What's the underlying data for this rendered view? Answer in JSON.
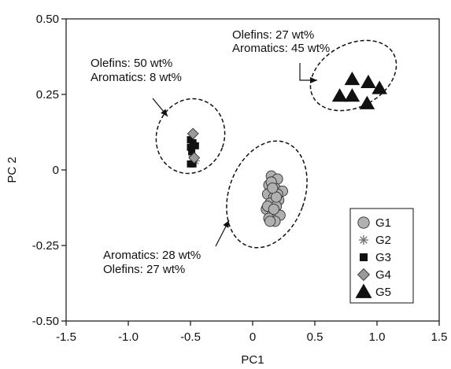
{
  "chart_data": {
    "type": "scatter",
    "xlabel": "PC1",
    "ylabel": "PC 2",
    "xlim": [
      -1.5,
      1.5
    ],
    "ylim": [
      -0.5,
      0.5
    ],
    "x_ticks": [
      -1.5,
      -1.0,
      -0.5,
      0,
      0.5,
      1.0,
      1.5
    ],
    "x_tick_labels": [
      "-1.5",
      "-1.0",
      "-0.5",
      "0",
      "0.5",
      "1.0",
      "1.5"
    ],
    "y_ticks": [
      0.5,
      0.25,
      0,
      -0.25,
      -0.5
    ],
    "y_tick_labels": [
      "0.50",
      "0.25",
      "0",
      "-0.25",
      "-0.50"
    ],
    "grid": false,
    "legend_position": "bottom-right",
    "series": [
      {
        "name": "G1",
        "marker": "circle",
        "color": "#b0b0b0",
        "points": [
          [
            0.15,
            -0.02
          ],
          [
            0.2,
            -0.03
          ],
          [
            0.13,
            -0.05
          ],
          [
            0.18,
            -0.06
          ],
          [
            0.24,
            -0.07
          ],
          [
            0.12,
            -0.08
          ],
          [
            0.17,
            -0.09
          ],
          [
            0.21,
            -0.1
          ],
          [
            0.14,
            -0.11
          ],
          [
            0.19,
            -0.12
          ],
          [
            0.11,
            -0.13
          ],
          [
            0.16,
            -0.14
          ],
          [
            0.22,
            -0.15
          ],
          [
            0.13,
            -0.16
          ],
          [
            0.18,
            -0.17
          ],
          [
            0.15,
            -0.04
          ],
          [
            0.2,
            -0.08
          ],
          [
            0.12,
            -0.12
          ],
          [
            0.17,
            -0.13
          ],
          [
            0.14,
            -0.17
          ],
          [
            0.19,
            -0.09
          ],
          [
            0.16,
            -0.06
          ]
        ]
      },
      {
        "name": "G2",
        "marker": "asterisk",
        "color": "#777777",
        "points": [
          [
            -0.48,
            0.045
          ],
          [
            -0.46,
            0.03
          ]
        ]
      },
      {
        "name": "G3",
        "marker": "square",
        "color": "#111111",
        "points": [
          [
            -0.5,
            0.1
          ],
          [
            -0.48,
            0.09
          ],
          [
            -0.5,
            0.075
          ],
          [
            -0.46,
            0.08
          ],
          [
            -0.5,
            0.02
          ],
          [
            -0.48,
            0.02
          ],
          [
            -0.49,
            0.06
          ]
        ]
      },
      {
        "name": "G4",
        "marker": "diamond",
        "color": "#9a9a9a",
        "points": [
          [
            -0.48,
            0.12
          ],
          [
            -0.47,
            0.04
          ]
        ]
      },
      {
        "name": "G5",
        "marker": "triangle",
        "color": "#111111",
        "points": [
          [
            0.8,
            0.3
          ],
          [
            0.93,
            0.29
          ],
          [
            1.02,
            0.27
          ],
          [
            0.7,
            0.245
          ],
          [
            0.8,
            0.245
          ],
          [
            0.92,
            0.22
          ]
        ]
      }
    ],
    "annotations": [
      {
        "id": "g5",
        "lines": [
          "Olefins: 27 wt%",
          "Aromatics: 45 wt%"
        ]
      },
      {
        "id": "g34",
        "lines": [
          "Olefins: 50 wt%",
          "Aromatics: 8 wt%"
        ]
      },
      {
        "id": "g1",
        "lines": [
          "Aromatics: 28 wt%",
          "Olefins: 27 wt%"
        ]
      }
    ]
  }
}
